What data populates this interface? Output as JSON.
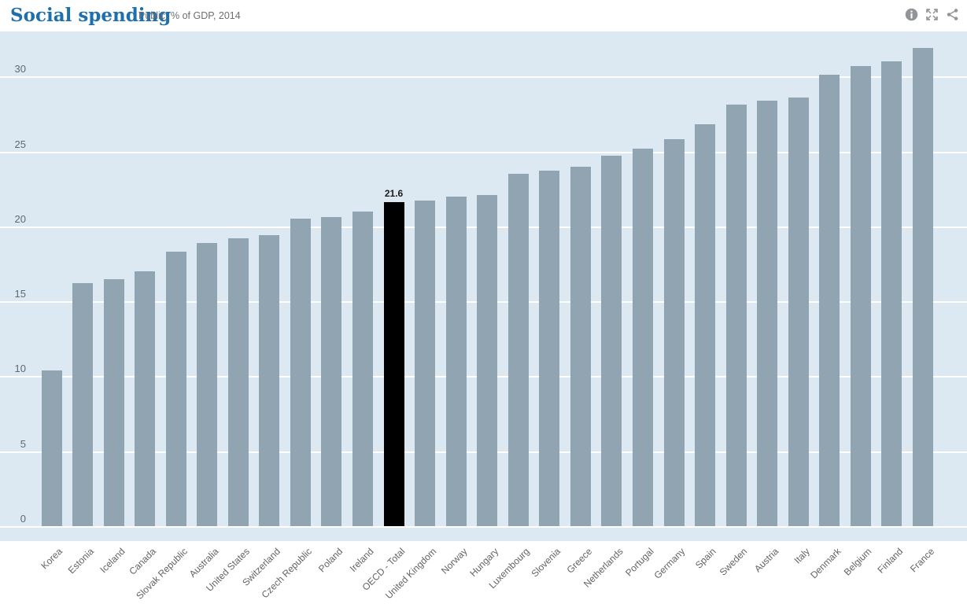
{
  "header": {
    "title": "Social spending",
    "subtitle": "Public, % of GDP, 2014",
    "icons": [
      "info-icon",
      "fullscreen-icon",
      "share-icon"
    ]
  },
  "colors": {
    "title_blue": "#1e6fad",
    "subtitle_gray": "#6d6e71",
    "chart_background": "#dce9f2",
    "bar": "#91a4b2",
    "highlight_bar": "#000000",
    "gridline": "#ffffff",
    "axis_text": "#5d6a74",
    "icon_gray": "#929497"
  },
  "chart_data": {
    "type": "bar",
    "title": "Social spending",
    "subtitle": "Public, % of GDP, 2014",
    "xlabel": "",
    "ylabel": "",
    "yticks": [
      0,
      5,
      10,
      15,
      20,
      25,
      30
    ],
    "ylim": [
      0,
      33
    ],
    "grid": true,
    "legend": false,
    "categories": [
      "Korea",
      "Estonia",
      "Iceland",
      "Canada",
      "Slovak Republic",
      "Australia",
      "United States",
      "Switzerland",
      "Czech Republic",
      "Poland",
      "Ireland",
      "OECD - Total",
      "United Kingdom",
      "Norway",
      "Hungary",
      "Luxembourg",
      "Slovenia",
      "Greece",
      "Netherlands",
      "Portugal",
      "Germany",
      "Spain",
      "Sweden",
      "Austria",
      "Italy",
      "Denmark",
      "Belgium",
      "Finland",
      "France"
    ],
    "values": [
      10.4,
      16.2,
      16.5,
      17.0,
      18.3,
      18.9,
      19.2,
      19.4,
      20.5,
      20.6,
      21.0,
      21.6,
      21.7,
      22.0,
      22.1,
      23.5,
      23.7,
      24.0,
      24.7,
      25.2,
      25.8,
      26.8,
      28.1,
      28.4,
      28.6,
      30.1,
      30.7,
      31.0,
      31.9
    ],
    "highlight": {
      "category": "OECD - Total",
      "index": 11,
      "value_label": "21.6",
      "color": "#000000"
    }
  }
}
